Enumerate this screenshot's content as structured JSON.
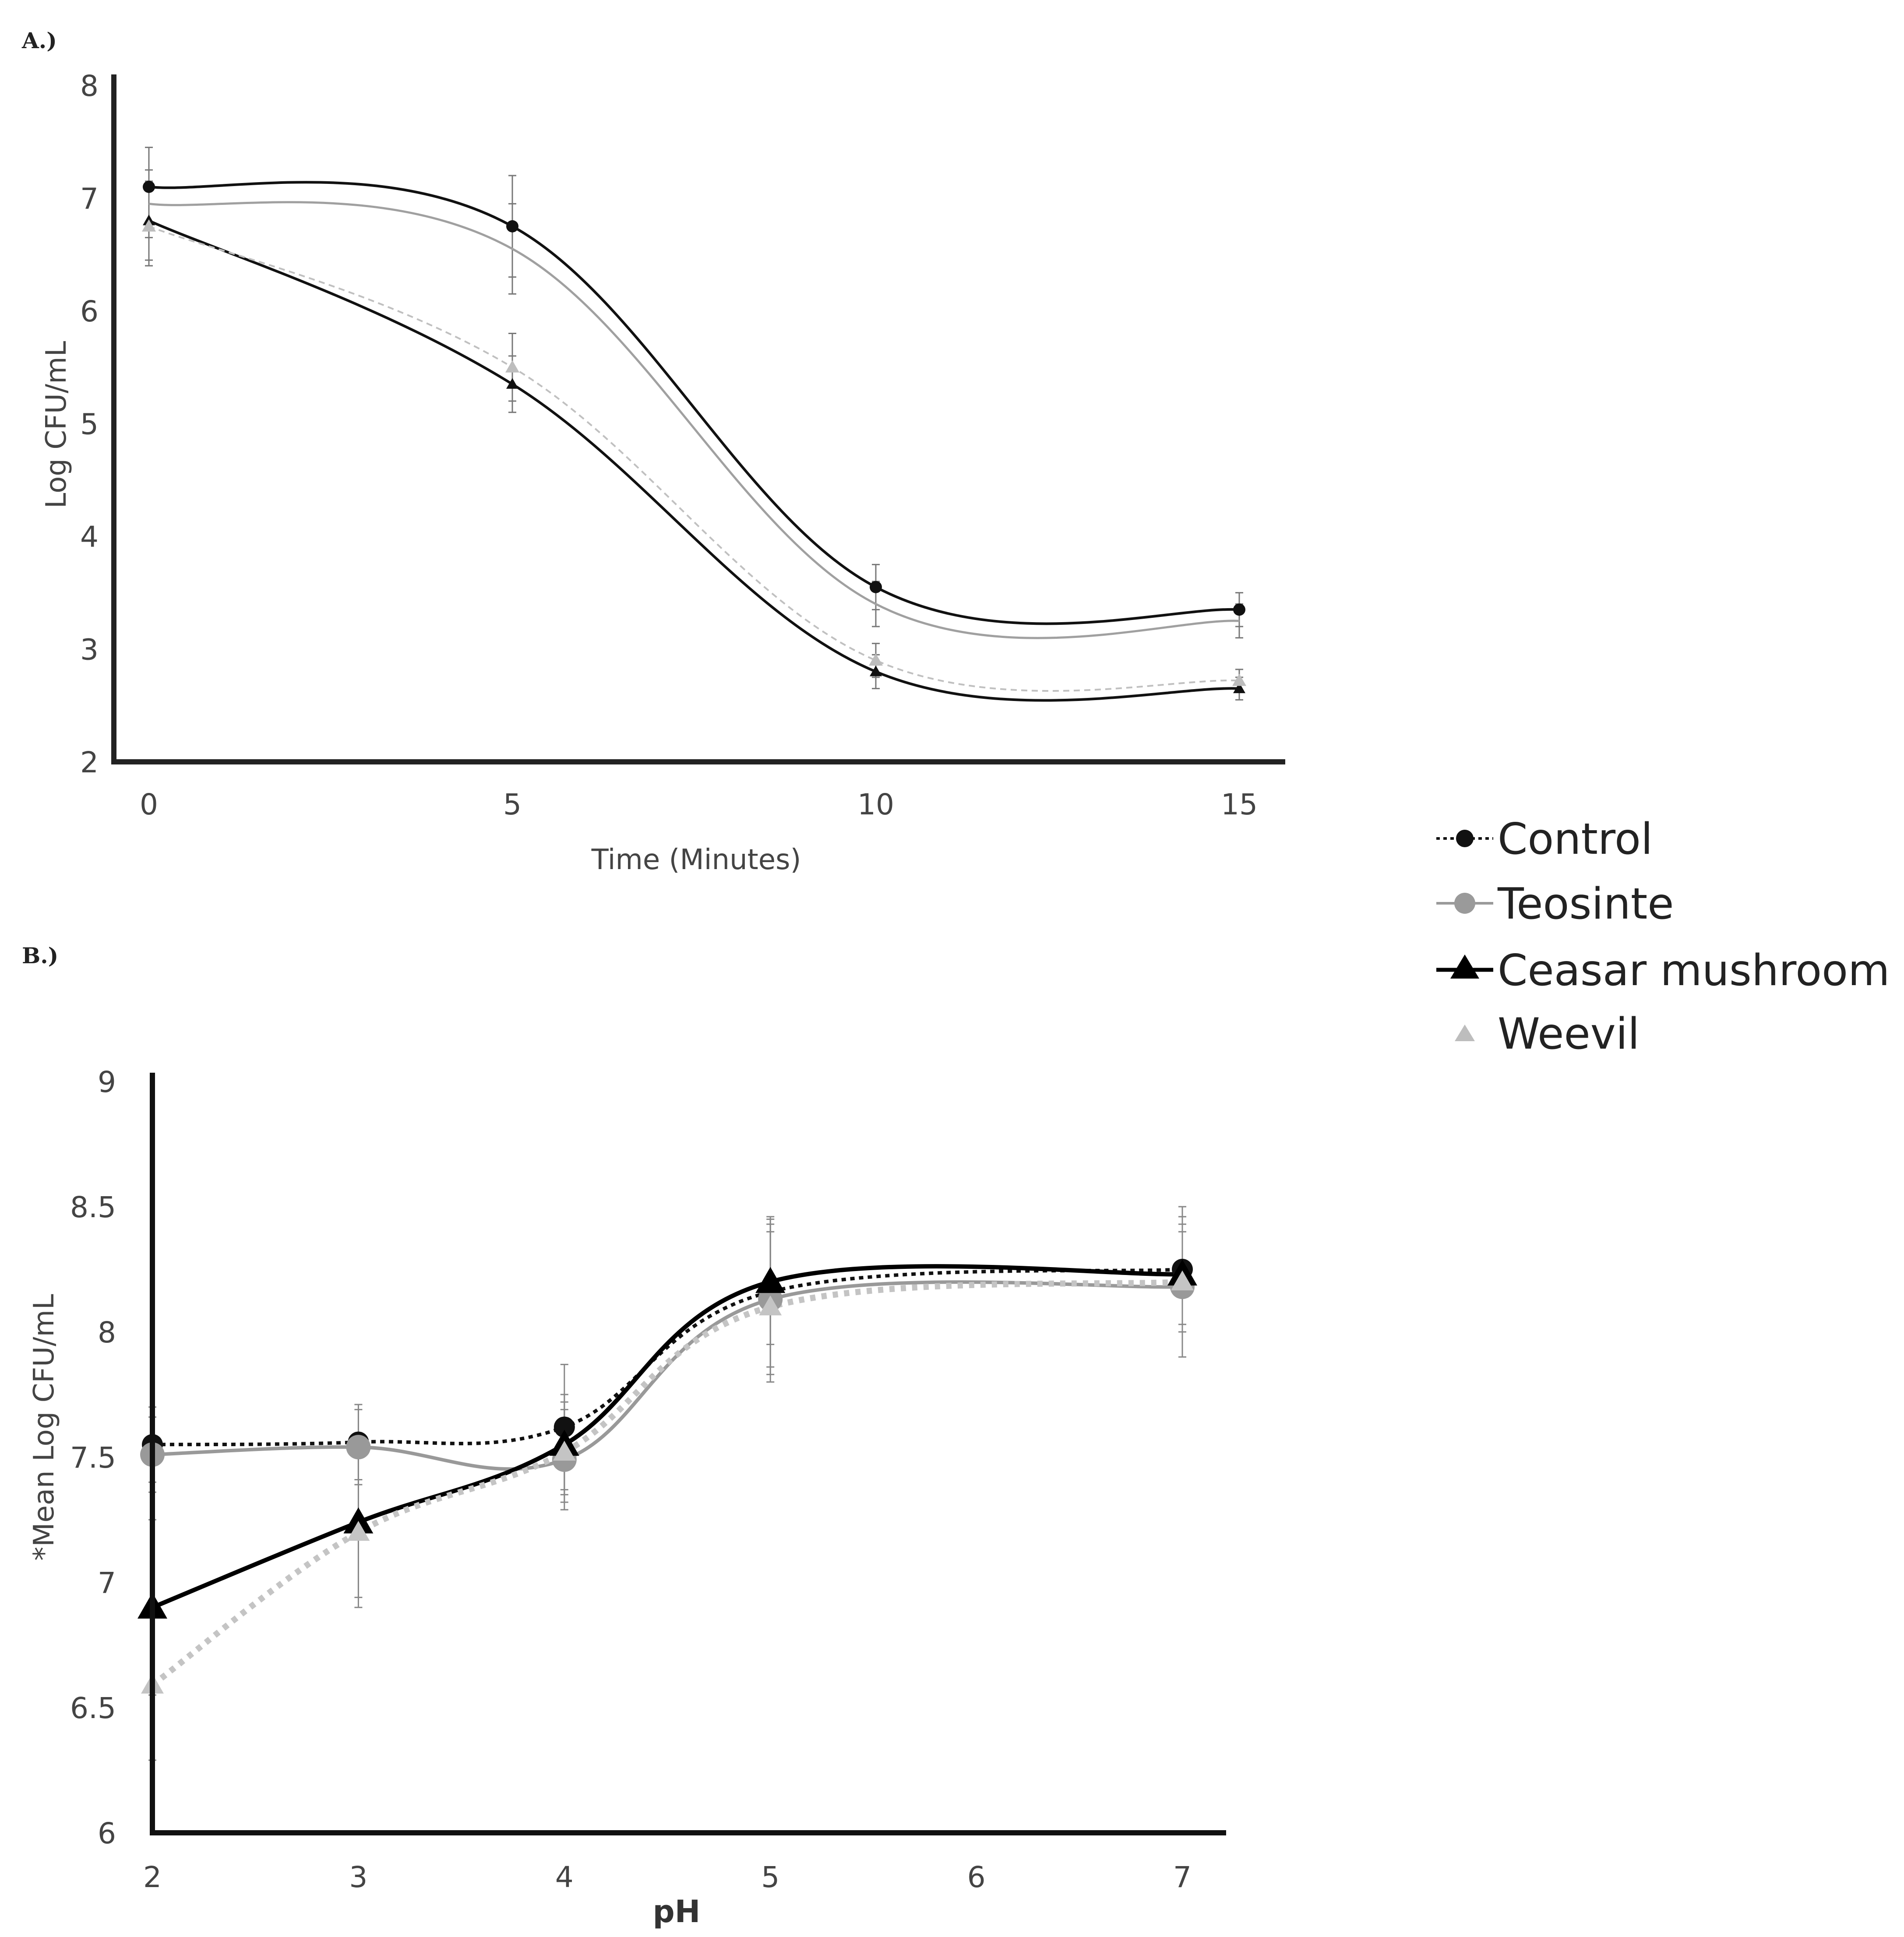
{
  "legend": [
    {
      "name": "Control",
      "color": "#111111",
      "marker": "circle",
      "dash": "dotted"
    },
    {
      "name": "Teosinte",
      "color": "#9a9a9a",
      "marker": "circle",
      "dash": "solid"
    },
    {
      "name": "Ceasar mushroom",
      "color": "#000000",
      "marker": "triangle",
      "dash": "solid"
    },
    {
      "name": "Weevil",
      "color": "#bdbdbd",
      "marker": "triangle",
      "dash": "dotted"
    }
  ],
  "chart_data": [
    {
      "panel_label": "A.)",
      "type": "line",
      "title": "",
      "xlabel": "Time (Minutes)",
      "ylabel": "Log CFU/mL",
      "xlim": [
        0,
        15
      ],
      "ylim": [
        2,
        8
      ],
      "x_ticks": [
        0,
        5,
        10,
        15
      ],
      "y_ticks": [
        2,
        3,
        4,
        5,
        6,
        7,
        8
      ],
      "x": [
        0,
        5,
        10,
        15
      ],
      "series": [
        {
          "name": "Control",
          "values": [
            7.1,
            6.75,
            3.55,
            3.35
          ],
          "errors": [
            0.35,
            0.45,
            0.2,
            0.15
          ]
        },
        {
          "name": "Teosinte",
          "values": [
            6.95,
            6.55,
            3.4,
            3.25
          ],
          "errors": [
            0.3,
            0.4,
            0.2,
            0.15
          ]
        },
        {
          "name": "Ceasar mushroom",
          "values": [
            6.8,
            5.35,
            2.8,
            2.65
          ],
          "errors": [
            0.35,
            0.25,
            0.15,
            0.1
          ]
        },
        {
          "name": "Weevil",
          "values": [
            6.75,
            5.5,
            2.9,
            2.72
          ],
          "errors": [
            0.35,
            0.3,
            0.15,
            0.1
          ]
        }
      ]
    },
    {
      "panel_label": "B.)",
      "type": "line",
      "title": "",
      "xlabel": "pH",
      "ylabel": "*Mean Log CFU/mL",
      "xlim": [
        2,
        7
      ],
      "ylim": [
        6,
        9
      ],
      "x_ticks": [
        2,
        3,
        4,
        5,
        6,
        7
      ],
      "y_ticks": [
        6,
        6.5,
        7,
        7.5,
        8,
        8.5,
        9
      ],
      "x": [
        2,
        3,
        4,
        5,
        7
      ],
      "series": [
        {
          "name": "Control",
          "values": [
            7.55,
            7.56,
            7.62,
            8.16,
            8.25
          ],
          "errors": [
            0.15,
            0.15,
            0.25,
            0.3,
            0.25
          ]
        },
        {
          "name": "Teosinte",
          "values": [
            7.51,
            7.54,
            7.49,
            8.13,
            8.18
          ],
          "errors": [
            0.15,
            0.15,
            0.2,
            0.3,
            0.28
          ]
        },
        {
          "name": "Ceasar mushroom",
          "values": [
            6.9,
            7.24,
            7.55,
            8.2,
            8.23
          ],
          "errors": [
            0.35,
            0.3,
            0.2,
            0.25,
            0.2
          ]
        },
        {
          "name": "Weevil",
          "values": [
            6.59,
            7.2,
            7.52,
            8.1,
            8.2
          ],
          "errors": [
            0.3,
            0.3,
            0.2,
            0.3,
            0.2
          ]
        }
      ]
    }
  ]
}
